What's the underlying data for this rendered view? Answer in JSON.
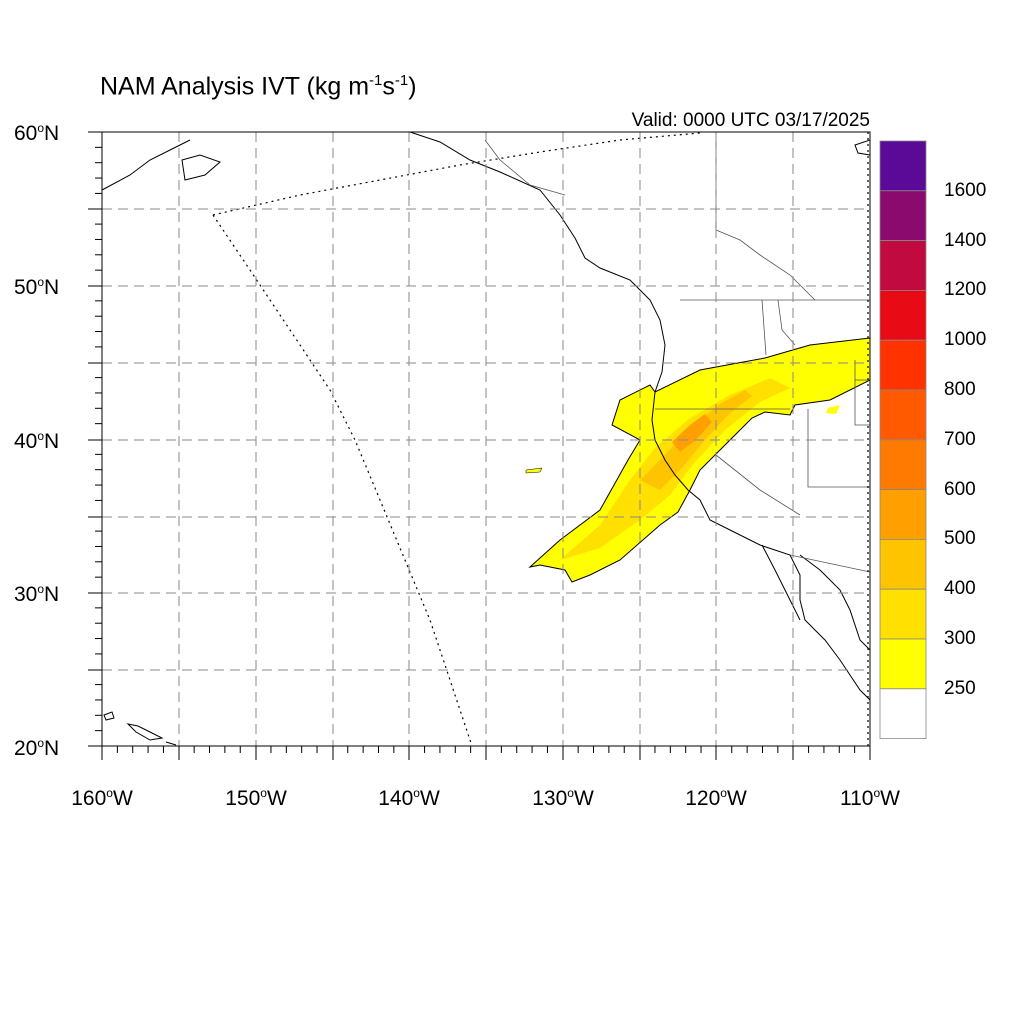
{
  "title": {
    "text": "NAM Analysis IVT (kg m",
    "unit_exp1": "-1",
    "mid": "s",
    "unit_exp2": "-1",
    "close": ")"
  },
  "valid_label": "Valid: 0000 UTC 03/17/2025",
  "axes": {
    "lat_labels": [
      {
        "deg": "60",
        "hemi": "N"
      },
      {
        "deg": "50",
        "hemi": "N"
      },
      {
        "deg": "40",
        "hemi": "N"
      },
      {
        "deg": "30",
        "hemi": "N"
      },
      {
        "deg": "20",
        "hemi": "N"
      }
    ],
    "lon_labels": [
      {
        "deg": "160",
        "hemi": "W"
      },
      {
        "deg": "150",
        "hemi": "W"
      },
      {
        "deg": "140",
        "hemi": "W"
      },
      {
        "deg": "130",
        "hemi": "W"
      },
      {
        "deg": "120",
        "hemi": "W"
      },
      {
        "deg": "110",
        "hemi": "W"
      }
    ]
  },
  "colorbar": {
    "labels": [
      "1600",
      "1400",
      "1200",
      "1000",
      "800",
      "700",
      "600",
      "500",
      "400",
      "300",
      "250"
    ],
    "colors": [
      "#5a0a96",
      "#8a0a6e",
      "#c00a40",
      "#e80a14",
      "#ff3200",
      "#ff5a00",
      "#ff7a00",
      "#ffa000",
      "#ffc400",
      "#ffe000",
      "#ffff00",
      "#ffffff"
    ]
  },
  "map": {
    "extent": {
      "lon": [
        -160,
        -110
      ],
      "lat": [
        20,
        60
      ]
    },
    "grid": "dashed 5-degree"
  }
}
